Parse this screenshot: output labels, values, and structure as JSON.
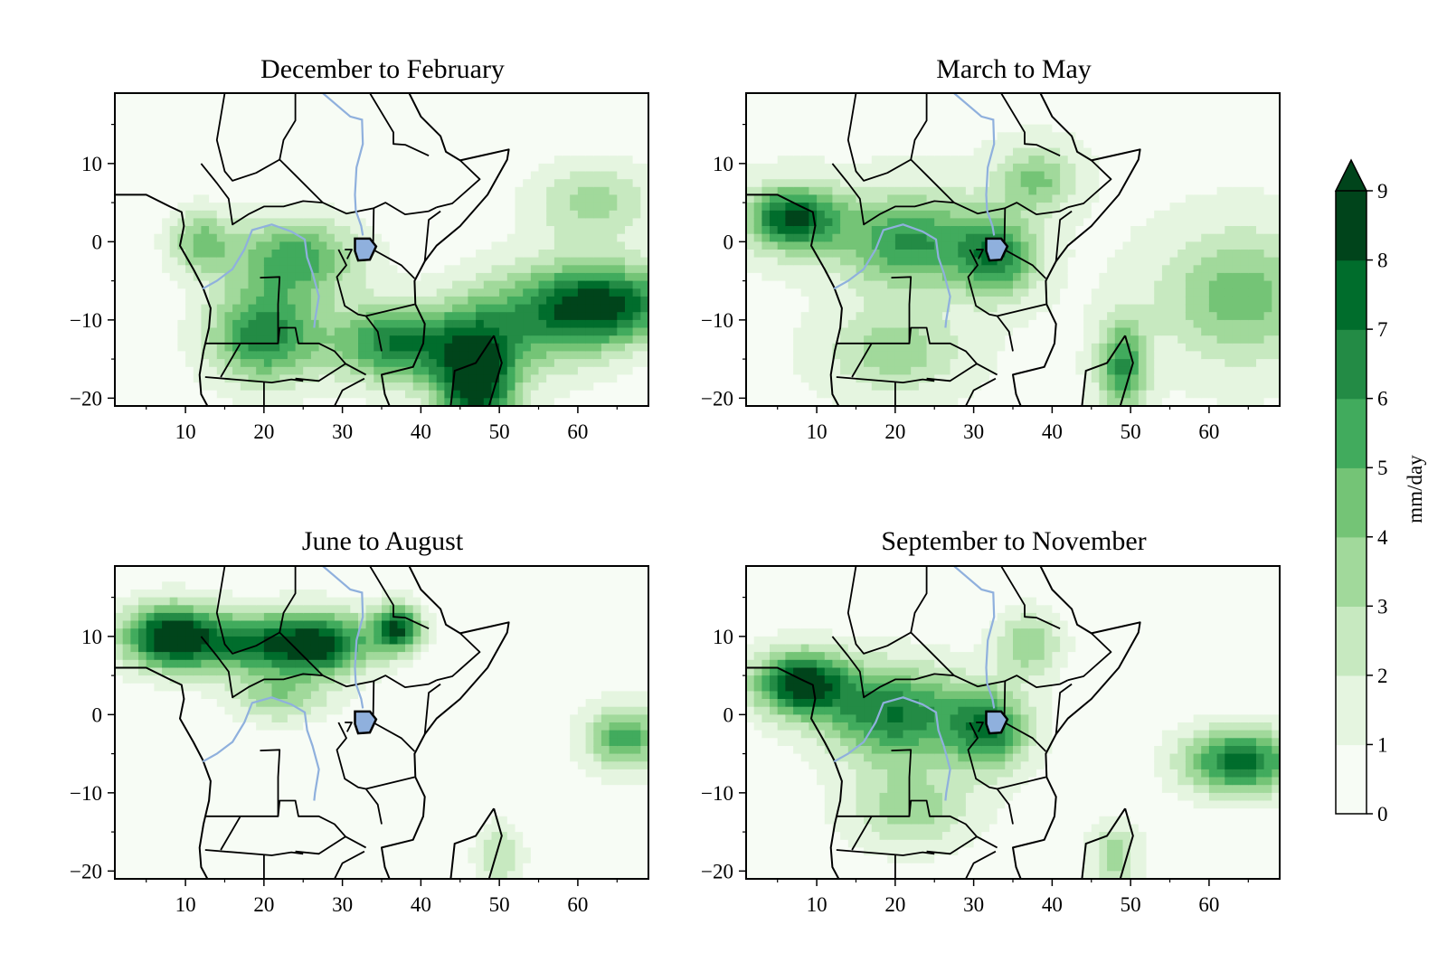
{
  "figure": {
    "panels": [
      {
        "id": "djf",
        "title": "December to February"
      },
      {
        "id": "mam",
        "title": "March to May"
      },
      {
        "id": "jja",
        "title": "June to August"
      },
      {
        "id": "son",
        "title": "September to November"
      }
    ],
    "x_ticks": [
      "10",
      "20",
      "30",
      "40",
      "50",
      "60"
    ],
    "y_ticks": [
      "10",
      "0",
      "−10",
      "−20"
    ],
    "colorbar": {
      "label": "mm/day",
      "ticks": [
        "0",
        "1",
        "2",
        "3",
        "4",
        "5",
        "6",
        "7",
        "8",
        "9"
      ],
      "extend": "max",
      "colors": [
        "#f7fcf5",
        "#e5f5e0",
        "#c7e9c0",
        "#a1d99b",
        "#74c476",
        "#41ab5d",
        "#238b45",
        "#006d2c",
        "#00441b"
      ]
    },
    "colors": {
      "river": "#8fb0dd",
      "coastline": "#000000"
    }
  },
  "chart_data": {
    "type": "heatmap",
    "variable": "mm/day",
    "extent": {
      "lon": [
        1,
        69
      ],
      "lat": [
        -21,
        19
      ]
    },
    "levels": [
      0,
      1,
      2,
      3,
      4,
      5,
      6,
      7,
      8,
      9
    ],
    "panels": [
      {
        "title": "December to February",
        "maxima": [
          {
            "lon": 47,
            "lat": -18,
            "value": 9
          },
          {
            "lon": 64,
            "lat": -8,
            "value": 7.5
          },
          {
            "lon": 37,
            "lat": -13,
            "value": 7
          },
          {
            "lon": 20,
            "lat": -12,
            "value": 6.5
          },
          {
            "lon": 24,
            "lat": -2,
            "value": 5.5
          }
        ]
      },
      {
        "title": "March to May",
        "maxima": [
          {
            "lon": 7,
            "lat": 3,
            "value": 7.5
          },
          {
            "lon": 22,
            "lat": 0,
            "value": 5.5
          },
          {
            "lon": 33,
            "lat": -2,
            "value": 5.5
          },
          {
            "lon": 49,
            "lat": -16,
            "value": 5.5
          },
          {
            "lon": 64,
            "lat": -7,
            "value": 4
          }
        ]
      },
      {
        "title": "June to August",
        "maxima": [
          {
            "lon": 8,
            "lat": 10,
            "value": 8.5
          },
          {
            "lon": 20,
            "lat": 8,
            "value": 6.5
          },
          {
            "lon": 37,
            "lat": 11,
            "value": 7.5
          },
          {
            "lon": 66,
            "lat": -3,
            "value": 5
          }
        ]
      },
      {
        "title": "September to November",
        "maxima": [
          {
            "lon": 8,
            "lat": 4,
            "value": 8.5
          },
          {
            "lon": 20,
            "lat": 0,
            "value": 6.5
          },
          {
            "lon": 32,
            "lat": -2,
            "value": 6
          },
          {
            "lon": 64,
            "lat": -6,
            "value": 7
          },
          {
            "lon": 37,
            "lat": 9,
            "value": 3.5
          }
        ]
      }
    ]
  }
}
